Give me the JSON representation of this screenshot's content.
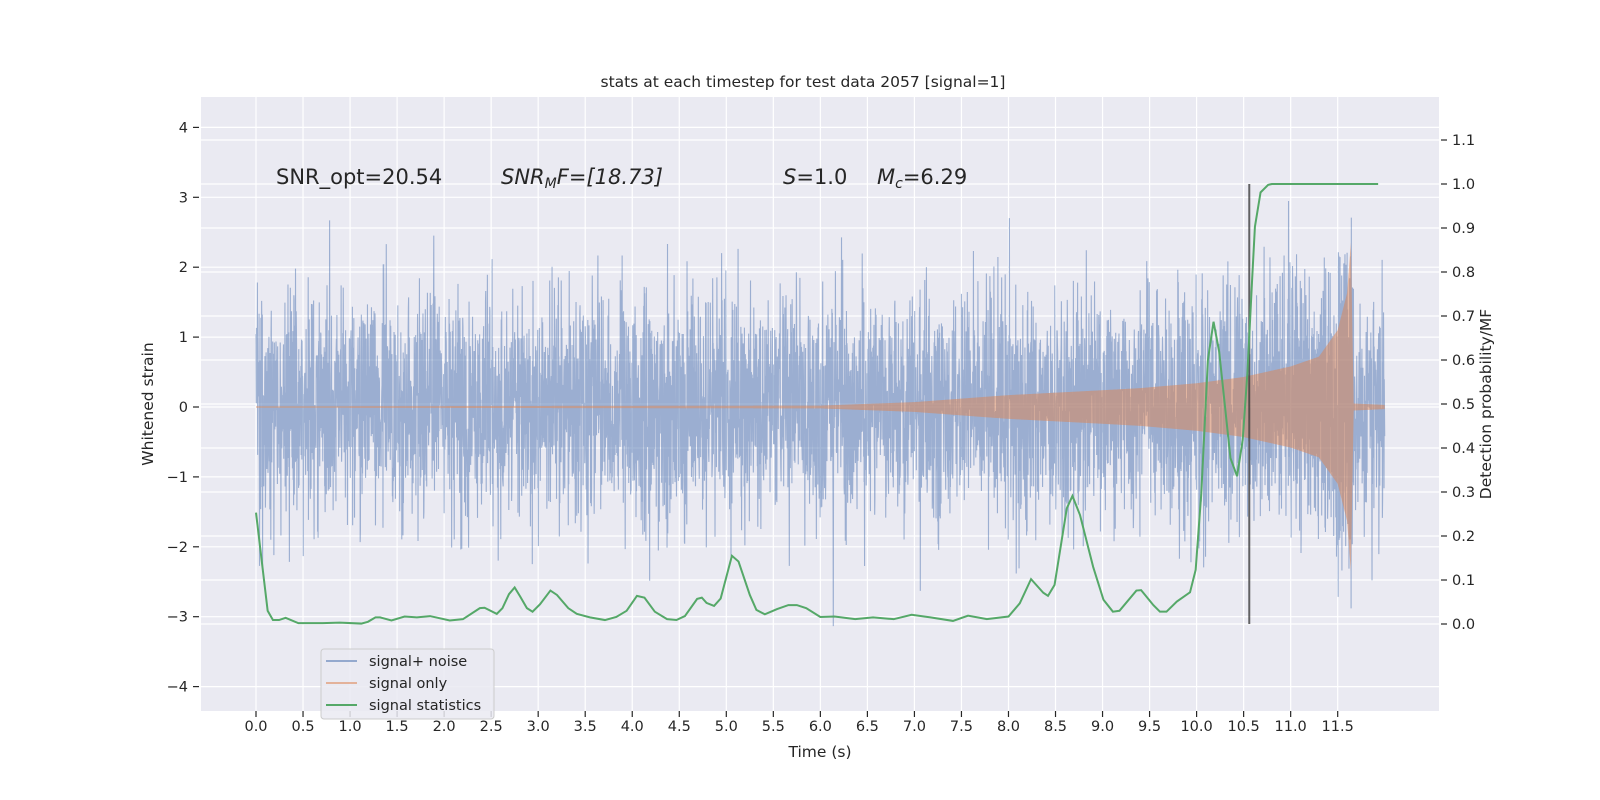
{
  "chart_data": {
    "type": "line",
    "title": "stats at each timestep for test data 2057 [signal=1]",
    "xlabel": "Time (s)",
    "ylabel": "Whitened strain",
    "ylabel_right": "Detection probability/MF",
    "xlim": [
      -0.6,
      12.5
    ],
    "ylim": [
      -4.3,
      4.5
    ],
    "ylim_right": [
      -0.19,
      1.2
    ],
    "grid": true,
    "legend_position": "lower-left",
    "x_ticks": [
      "0.0",
      "0.5",
      "1.0",
      "1.5",
      "2.0",
      "2.5",
      "3.0",
      "3.5",
      "4.0",
      "4.5",
      "5.0",
      "5.5",
      "6.0",
      "6.5",
      "7.0",
      "7.5",
      "8.0",
      "8.5",
      "9.0",
      "9.5",
      "10.0",
      "10.5",
      "11.0",
      "11.5"
    ],
    "y_ticks": [
      "4",
      "3",
      "2",
      "1",
      "0",
      "−1",
      "−2",
      "−3",
      "−4"
    ],
    "y_ticks_values": [
      4,
      3,
      2,
      1,
      0,
      -1,
      -2,
      -3,
      -4
    ],
    "y_ticks_right": [
      "1.1",
      "1.0",
      "0.9",
      "0.8",
      "0.7",
      "0.6",
      "0.5",
      "0.4",
      "0.3",
      "0.2",
      "0.1",
      "0.0"
    ],
    "y_ticks_right_values": [
      1.1,
      1.0,
      0.9,
      0.8,
      0.7,
      0.6,
      0.5,
      0.4,
      0.3,
      0.2,
      0.1,
      0.0
    ],
    "annotations": {
      "snr_opt": "SNR_opt=20.54",
      "snr_mf": {
        "base": "SNR",
        "sub": "M",
        "rest": "F=[18.73]"
      },
      "s": {
        "sym": "S",
        "rest": "=1.0"
      },
      "mc": {
        "sym": "M",
        "sub": "c",
        "rest": "=6.29"
      }
    },
    "legend": [
      "signal+ noise",
      "signal only",
      "signal statistics"
    ],
    "colors": {
      "noise": "#4c72b0",
      "signal": "#dd8452",
      "stat": "#55a868",
      "marker": "#333333"
    },
    "series": [
      {
        "name": "signal+ noise",
        "axis": "left",
        "t_range": [
          0,
          12.0
        ],
        "noise_std": 0.8,
        "note": "dense whitened strain trace, core band about ±1.3, spikes to about ±4"
      },
      {
        "name": "signal only",
        "axis": "left",
        "envelope": [
          [
            0,
            0.01
          ],
          [
            6.0,
            0.02
          ],
          [
            7.0,
            0.07
          ],
          [
            8.0,
            0.17
          ],
          [
            9.0,
            0.24
          ],
          [
            9.4,
            0.27
          ],
          [
            10.0,
            0.34
          ],
          [
            10.5,
            0.43
          ],
          [
            11.0,
            0.58
          ],
          [
            11.3,
            0.72
          ],
          [
            11.5,
            1.1
          ],
          [
            11.6,
            1.63
          ],
          [
            11.64,
            2.35
          ],
          [
            11.67,
            0.05
          ],
          [
            12.0,
            0.03
          ]
        ]
      },
      {
        "name": "signal statistics",
        "axis": "right",
        "points": [
          [
            0,
            0.253
          ],
          [
            0.124,
            0.03
          ],
          [
            0.18,
            0.009
          ],
          [
            0.245,
            0.009
          ],
          [
            0.315,
            0.014
          ],
          [
            0.45,
            0.002
          ],
          [
            0.71,
            0.002
          ],
          [
            0.89,
            0.003
          ],
          [
            1.12,
            0.001
          ],
          [
            1.19,
            0.005
          ],
          [
            1.27,
            0.015
          ],
          [
            1.32,
            0.015
          ],
          [
            1.44,
            0.008
          ],
          [
            1.58,
            0.017
          ],
          [
            1.71,
            0.015
          ],
          [
            1.85,
            0.018
          ],
          [
            2.06,
            0.008
          ],
          [
            2.2,
            0.011
          ],
          [
            2.38,
            0.036
          ],
          [
            2.43,
            0.037
          ],
          [
            2.56,
            0.023
          ],
          [
            2.62,
            0.036
          ],
          [
            2.69,
            0.068
          ],
          [
            2.75,
            0.083
          ],
          [
            2.81,
            0.062
          ],
          [
            2.88,
            0.036
          ],
          [
            2.94,
            0.028
          ],
          [
            3.02,
            0.045
          ],
          [
            3.13,
            0.076
          ],
          [
            3.2,
            0.066
          ],
          [
            3.32,
            0.036
          ],
          [
            3.41,
            0.023
          ],
          [
            3.55,
            0.015
          ],
          [
            3.71,
            0.009
          ],
          [
            3.83,
            0.016
          ],
          [
            3.94,
            0.03
          ],
          [
            4.05,
            0.064
          ],
          [
            4.13,
            0.06
          ],
          [
            4.24,
            0.028
          ],
          [
            4.37,
            0.011
          ],
          [
            4.47,
            0.009
          ],
          [
            4.56,
            0.018
          ],
          [
            4.69,
            0.057
          ],
          [
            4.74,
            0.06
          ],
          [
            4.79,
            0.048
          ],
          [
            4.87,
            0.041
          ],
          [
            4.94,
            0.058
          ],
          [
            5.06,
            0.155
          ],
          [
            5.13,
            0.142
          ],
          [
            5.25,
            0.066
          ],
          [
            5.32,
            0.032
          ],
          [
            5.41,
            0.022
          ],
          [
            5.54,
            0.034
          ],
          [
            5.66,
            0.043
          ],
          [
            5.75,
            0.043
          ],
          [
            5.85,
            0.036
          ],
          [
            6.0,
            0.016
          ],
          [
            6.15,
            0.017
          ],
          [
            6.37,
            0.011
          ],
          [
            6.56,
            0.015
          ],
          [
            6.78,
            0.011
          ],
          [
            6.97,
            0.021
          ],
          [
            7.17,
            0.015
          ],
          [
            7.41,
            0.007
          ],
          [
            7.57,
            0.019
          ],
          [
            7.77,
            0.011
          ],
          [
            8.0,
            0.017
          ],
          [
            8.12,
            0.047
          ],
          [
            8.24,
            0.102
          ],
          [
            8.37,
            0.071
          ],
          [
            8.42,
            0.064
          ],
          [
            8.49,
            0.089
          ],
          [
            8.62,
            0.263
          ],
          [
            8.68,
            0.291
          ],
          [
            8.76,
            0.248
          ],
          [
            8.9,
            0.13
          ],
          [
            9.01,
            0.055
          ],
          [
            9.11,
            0.028
          ],
          [
            9.18,
            0.03
          ],
          [
            9.36,
            0.076
          ],
          [
            9.41,
            0.077
          ],
          [
            9.54,
            0.043
          ],
          [
            9.61,
            0.028
          ],
          [
            9.68,
            0.028
          ],
          [
            9.79,
            0.051
          ],
          [
            9.93,
            0.072
          ],
          [
            9.99,
            0.123
          ],
          [
            10.05,
            0.297
          ],
          [
            10.12,
            0.6
          ],
          [
            10.18,
            0.687
          ],
          [
            10.24,
            0.619
          ],
          [
            10.36,
            0.377
          ],
          [
            10.43,
            0.336
          ],
          [
            10.49,
            0.418
          ],
          [
            10.54,
            0.57
          ],
          [
            10.59,
            0.782
          ],
          [
            10.62,
            0.903
          ],
          [
            10.68,
            0.981
          ],
          [
            10.76,
            0.998
          ],
          [
            10.8,
            1.0
          ],
          [
            11.93,
            1.0
          ]
        ]
      }
    ],
    "vertical_marker": {
      "t": 10.56,
      "from": 0.0,
      "to": 1.0,
      "axis": "right"
    }
  }
}
